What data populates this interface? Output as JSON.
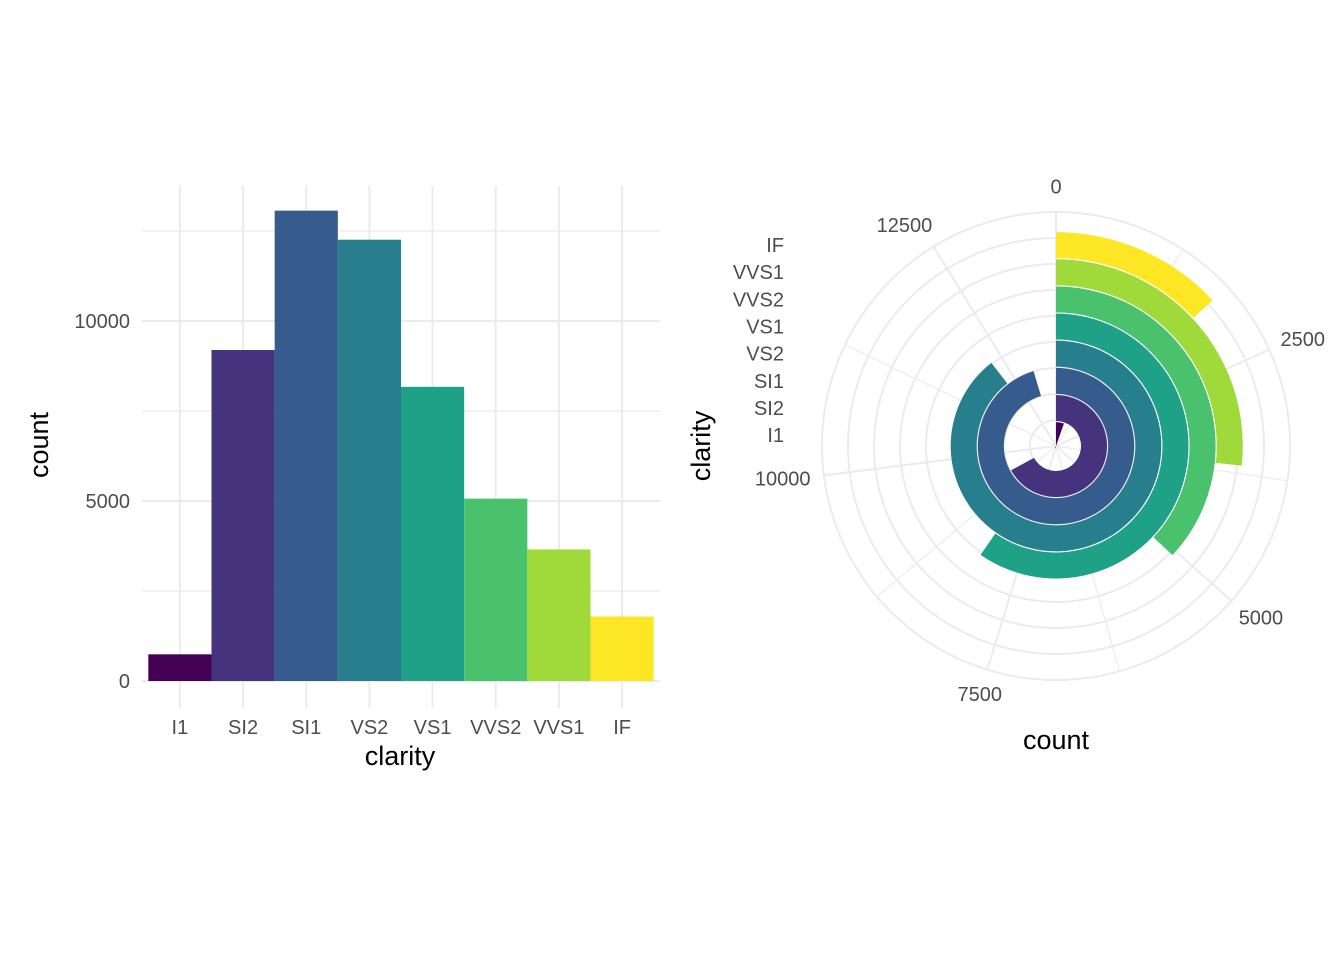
{
  "chart_data": [
    {
      "type": "bar",
      "categories": [
        "I1",
        "SI2",
        "SI1",
        "VS2",
        "VS1",
        "VVS2",
        "VVS1",
        "IF"
      ],
      "values": [
        741,
        9194,
        13065,
        12258,
        8171,
        5066,
        3655,
        1790
      ],
      "xlabel": "clarity",
      "ylabel": "count",
      "ylim": [
        0,
        13700
      ],
      "yticks": [
        0,
        5000,
        10000
      ],
      "grid": true,
      "legend": "none",
      "colors": [
        "#440154",
        "#46337E",
        "#365C8D",
        "#277F8E",
        "#1FA187",
        "#4AC16D",
        "#9FDA3A",
        "#FDE725"
      ]
    },
    {
      "type": "bar",
      "coord": "polar",
      "theta": "count",
      "categories": [
        "I1",
        "SI2",
        "SI1",
        "VS2",
        "VS1",
        "VVS2",
        "VVS1",
        "IF"
      ],
      "values": [
        741,
        9194,
        13065,
        12258,
        8171,
        5066,
        3655,
        1790
      ],
      "xlabel": "count",
      "ylabel": "clarity",
      "theta_range": [
        0,
        13700
      ],
      "theta_ticks": [
        0,
        2500,
        5000,
        7500,
        10000,
        12500
      ],
      "theta_tick_labels": [
        "0",
        "2500",
        "5000",
        "7500",
        "10000",
        "12500"
      ],
      "radial_tick_labels": [
        "I1",
        "SI2",
        "SI1",
        "VS2",
        "VS1",
        "VVS2",
        "VVS1",
        "IF"
      ],
      "grid": true,
      "legend": "none",
      "colors": [
        "#440154",
        "#46337E",
        "#365C8D",
        "#277F8E",
        "#1FA187",
        "#4AC16D",
        "#9FDA3A",
        "#FDE725"
      ]
    }
  ]
}
